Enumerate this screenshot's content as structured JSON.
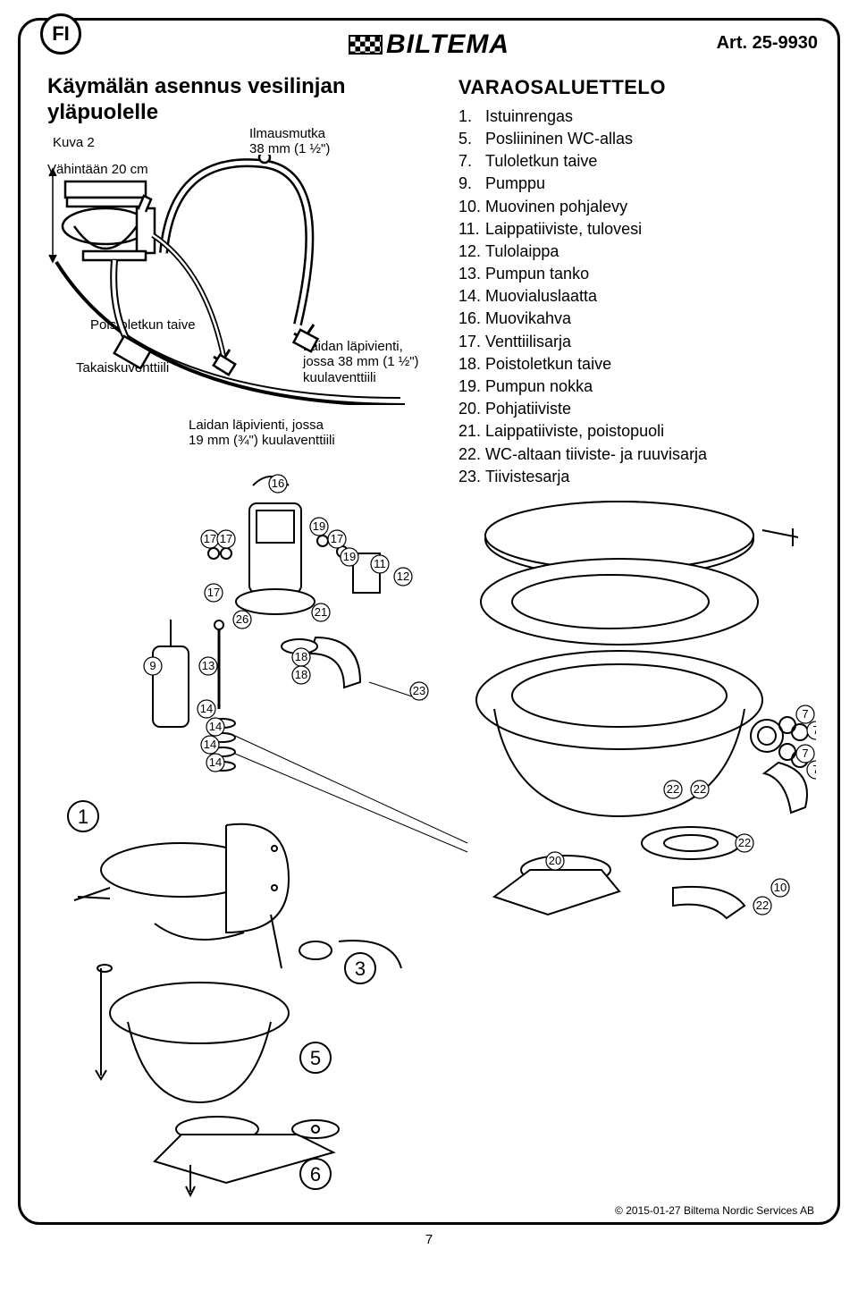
{
  "header": {
    "lang_code": "FI",
    "brand": "BILTEMA",
    "art_label": "Art. 25-9930"
  },
  "title": "Käymälän asennus vesilinjan yläpuolelle",
  "fig2_labels": {
    "kuva": "Kuva 2",
    "vahintaan": "Vähintään 20 cm",
    "ilmausmutka_l1": "Ilmausmutka",
    "ilmausmutka_l2": "38 mm (1 ½\")",
    "poistoletkun_taive": "Poistoletkun taive",
    "takaiskuventtiili": "Takaiskuventtiili",
    "laidan38_l1": "Laidan läpivienti,",
    "laidan38_l2": "jossa 38 mm (1 ½\")",
    "laidan38_l3": "kuulaventtiili",
    "laidan19_l1": "Laidan läpivienti, jossa",
    "laidan19_l2": "19 mm (¾\") kuulaventtiili"
  },
  "parts_list": {
    "heading": "VARAOSALUETTELO",
    "items": [
      {
        "n": "1.",
        "t": "Istuinrengas"
      },
      {
        "n": "5.",
        "t": "Posliininen WC-allas"
      },
      {
        "n": "7.",
        "t": "Tuloletkun taive"
      },
      {
        "n": "9.",
        "t": "Pumppu"
      },
      {
        "n": "10.",
        "t": "Muovinen pohjalevy"
      },
      {
        "n": "11.",
        "t": "Laippatiiviste, tulovesi"
      },
      {
        "n": "12.",
        "t": "Tulolaippa"
      },
      {
        "n": "13.",
        "t": "Pumpun tanko"
      },
      {
        "n": "14.",
        "t": "Muovialuslaatta"
      },
      {
        "n": "16.",
        "t": "Muovikahva"
      },
      {
        "n": "17.",
        "t": "Venttiilisarja"
      },
      {
        "n": "18.",
        "t": "Poistoletkun taive"
      },
      {
        "n": "19.",
        "t": "Pumpun nokka"
      },
      {
        "n": "20.",
        "t": "Pohjatiiviste"
      },
      {
        "n": "21.",
        "t": "Laippatiiviste, poistopuoli"
      },
      {
        "n": "22.",
        "t": "WC-altaan tiiviste- ja ruuvisarja"
      },
      {
        "n": "23.",
        "t": "Tiivistesarja"
      }
    ]
  },
  "exploded_callouts": {
    "big": [
      "1",
      "3",
      "5",
      "6"
    ],
    "small": [
      "16",
      "17",
      "17",
      "17",
      "19",
      "17",
      "19",
      "11",
      "12",
      "26",
      "21",
      "9",
      "13",
      "18",
      "18",
      "23",
      "14",
      "14",
      "14",
      "14",
      "7",
      "7",
      "7",
      "7",
      "22",
      "22",
      "22",
      "22",
      "20",
      "10"
    ]
  },
  "footer": {
    "page": "7",
    "copyright": "© 2015-01-27 Biltema Nordic Services AB"
  },
  "colors": {
    "stroke": "#000000",
    "bg": "#ffffff"
  }
}
